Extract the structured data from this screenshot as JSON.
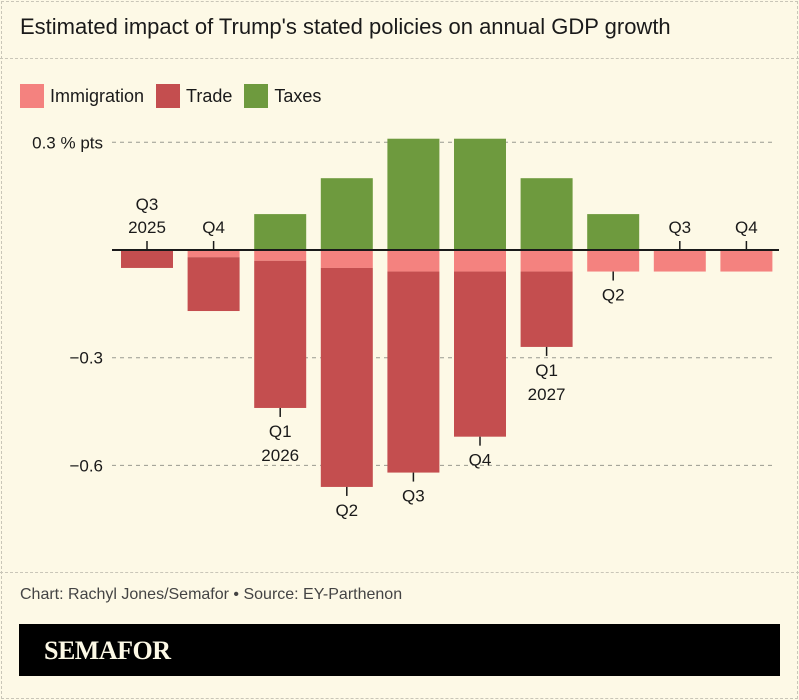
{
  "chart_data": {
    "type": "bar",
    "stacked": true,
    "title": "Estimated impact of Trump's stated policies on annual GDP growth",
    "categories": [
      {
        "line1": "Q3",
        "line2": "2025"
      },
      {
        "line1": "Q4",
        "line2": ""
      },
      {
        "line1": "Q1",
        "line2": "2026"
      },
      {
        "line1": "Q2",
        "line2": ""
      },
      {
        "line1": "Q3",
        "line2": ""
      },
      {
        "line1": "Q4",
        "line2": ""
      },
      {
        "line1": "Q1",
        "line2": "2027"
      },
      {
        "line1": "Q2",
        "line2": ""
      },
      {
        "line1": "Q3",
        "line2": ""
      },
      {
        "line1": "Q4",
        "line2": ""
      }
    ],
    "series": [
      {
        "name": "Immigration",
        "color": "#f4827f",
        "values": [
          0,
          -0.02,
          -0.03,
          -0.05,
          -0.06,
          -0.06,
          -0.06,
          -0.06,
          -0.06,
          -0.06
        ]
      },
      {
        "name": "Trade",
        "color": "#c44e4f",
        "values": [
          -0.05,
          -0.15,
          -0.41,
          -0.61,
          -0.56,
          -0.46,
          -0.21,
          0,
          0,
          0
        ]
      },
      {
        "name": "Taxes",
        "color": "#6e9a3e",
        "values": [
          0,
          0,
          0.1,
          0.2,
          0.31,
          0.31,
          0.2,
          0.1,
          0,
          0
        ]
      }
    ],
    "ylim": [
      -0.7,
      0.31
    ],
    "yticks": [
      {
        "value": 0.3,
        "label": "0.3 % pts"
      },
      {
        "value": -0.3,
        "label": "−0.3"
      },
      {
        "value": -0.6,
        "label": "−0.6"
      }
    ],
    "grid": true,
    "legend": "top-left"
  },
  "footer": {
    "credit": "Chart: Rachyl Jones/Semafor • Source: EY-Parthenon",
    "brand": "SEMAFOR"
  }
}
